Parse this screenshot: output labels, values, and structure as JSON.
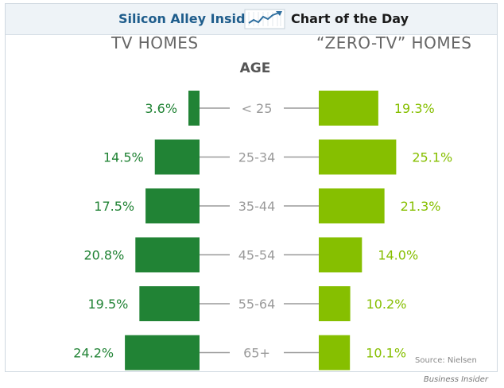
{
  "header": {
    "brand": "Silicon Alley Insider",
    "chart_of_the_day": "Chart of the Day"
  },
  "source": "Source: Nielsen",
  "credit": "Business Insider",
  "colors": {
    "tv_homes": "#218335",
    "zero_tv_homes": "#86bf00",
    "connector": "#9a9a9a",
    "category_text": "#9a9a9a"
  },
  "chart_data": {
    "type": "bar",
    "orientation": "horizontal-butterfly",
    "title": "",
    "category_axis_label": "AGE",
    "categories": [
      "< 25",
      "25-34",
      "35-44",
      "45-54",
      "55-64",
      "65+"
    ],
    "series": [
      {
        "name": "TV HOMES",
        "values": [
          3.6,
          14.5,
          17.5,
          20.8,
          19.5,
          24.2
        ],
        "labels": [
          "3.6%",
          "14.5%",
          "17.5%",
          "20.8%",
          "19.5%",
          "24.2%"
        ]
      },
      {
        "name": "“ZERO-TV” HOMES",
        "values": [
          19.3,
          25.1,
          21.3,
          14.0,
          10.2,
          10.1
        ],
        "labels": [
          "19.3%",
          "25.1%",
          "21.3%",
          "14.0%",
          "10.2%",
          "10.1%"
        ]
      }
    ],
    "unit": "%",
    "grid": false
  }
}
